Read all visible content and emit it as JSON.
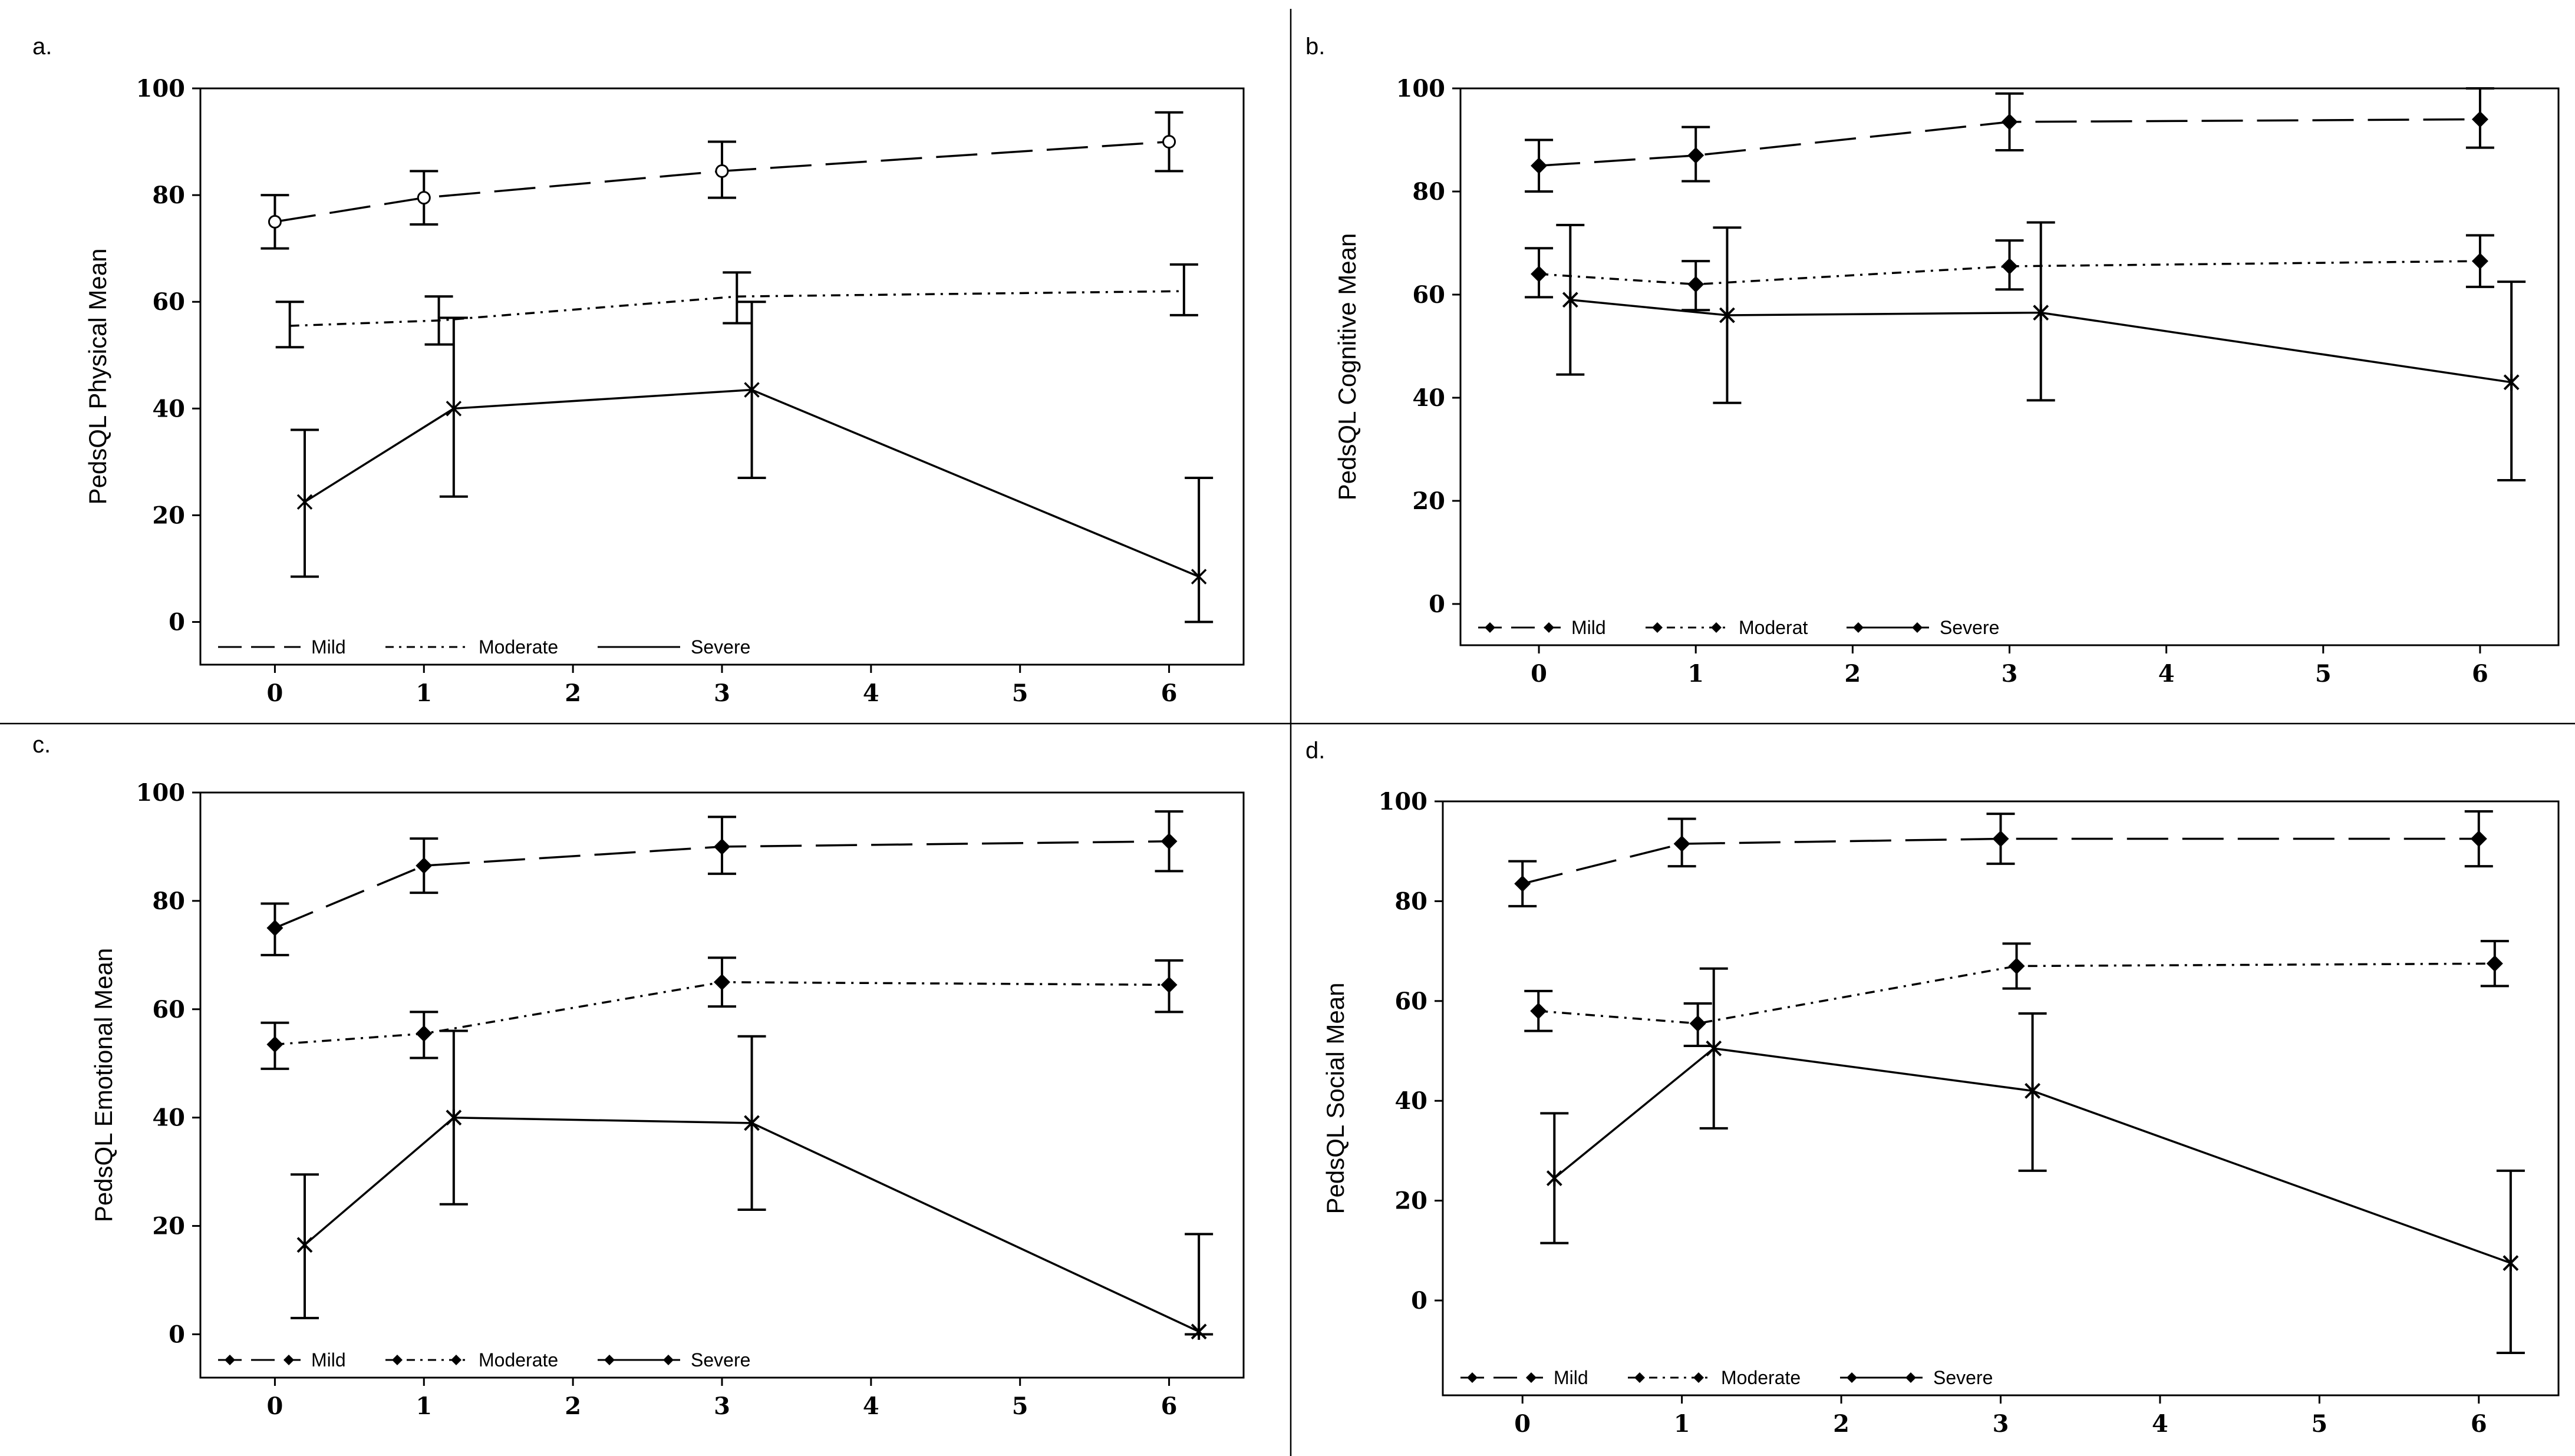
{
  "chart_data": [
    {
      "panel": "a.",
      "type": "line",
      "ylabel": "PedsQL Physical Mean",
      "xlabel": "",
      "xlim": [
        -0.5,
        6.5
      ],
      "ylim": [
        -8,
        100
      ],
      "x_ticks": [
        0,
        1,
        2,
        3,
        4,
        5,
        6
      ],
      "y_ticks": [
        0,
        20,
        40,
        60,
        80,
        100
      ],
      "legend": {
        "position": "bottom-left",
        "entries": [
          "Mild",
          "Moderate",
          "Severe"
        ]
      },
      "series": [
        {
          "name": "Mild",
          "style": "long-dash",
          "marker": "circle",
          "points": [
            {
              "x": 0.0,
              "y": 75,
              "lo": 70,
              "hi": 80
            },
            {
              "x": 1.0,
              "y": 79.5,
              "lo": 74.5,
              "hi": 84.5
            },
            {
              "x": 3.0,
              "y": 84.5,
              "lo": 79.5,
              "hi": 90
            },
            {
              "x": 6.0,
              "y": 90,
              "lo": 84.5,
              "hi": 95.5
            }
          ]
        },
        {
          "name": "Moderate",
          "style": "dash-dot",
          "marker": "none",
          "points": [
            {
              "x": 0.1,
              "y": 55.5,
              "lo": 51.5,
              "hi": 60
            },
            {
              "x": 1.1,
              "y": 56.5,
              "lo": 52,
              "hi": 61
            },
            {
              "x": 3.1,
              "y": 61,
              "lo": 56,
              "hi": 65.5
            },
            {
              "x": 6.1,
              "y": 62,
              "lo": 57.5,
              "hi": 67
            }
          ]
        },
        {
          "name": "Severe",
          "style": "solid",
          "marker": "x",
          "points": [
            {
              "x": 0.2,
              "y": 22.5,
              "lo": 8.5,
              "hi": 36
            },
            {
              "x": 1.2,
              "y": 40,
              "lo": 23.5,
              "hi": 57
            },
            {
              "x": 3.2,
              "y": 43.5,
              "lo": 27,
              "hi": 60
            },
            {
              "x": 6.2,
              "y": 8.5,
              "lo": 0,
              "hi": 27
            }
          ]
        }
      ]
    },
    {
      "panel": "b.",
      "type": "line",
      "ylabel": "PedsQL Cognitive Mean",
      "xlabel": "",
      "xlim": [
        -0.5,
        6.5
      ],
      "ylim": [
        -8,
        100
      ],
      "x_ticks": [
        0,
        1,
        2,
        3,
        4,
        5,
        6
      ],
      "y_ticks": [
        0,
        20,
        40,
        60,
        80,
        100
      ],
      "legend": {
        "position": "bottom-left",
        "entries": [
          "Mild",
          "Moderat",
          "Severe"
        ]
      },
      "series": [
        {
          "name": "Mild",
          "style": "long-dash",
          "marker": "diamond",
          "points": [
            {
              "x": 0.0,
              "y": 85,
              "lo": 80,
              "hi": 90
            },
            {
              "x": 1.0,
              "y": 87,
              "lo": 82,
              "hi": 92.5
            },
            {
              "x": 3.0,
              "y": 93.5,
              "lo": 88,
              "hi": 99
            },
            {
              "x": 6.0,
              "y": 94,
              "lo": 88.5,
              "hi": 100
            }
          ]
        },
        {
          "name": "Moderat",
          "style": "dash-dot",
          "marker": "diamond",
          "points": [
            {
              "x": 0.0,
              "y": 64,
              "lo": 59.5,
              "hi": 69
            },
            {
              "x": 1.0,
              "y": 62,
              "lo": 57,
              "hi": 66.5
            },
            {
              "x": 3.0,
              "y": 65.5,
              "lo": 61,
              "hi": 70.5
            },
            {
              "x": 6.0,
              "y": 66.5,
              "lo": 61.5,
              "hi": 71.5
            }
          ]
        },
        {
          "name": "Severe",
          "style": "solid",
          "marker": "star",
          "points": [
            {
              "x": 0.2,
              "y": 59,
              "lo": 44.5,
              "hi": 73.5
            },
            {
              "x": 1.2,
              "y": 56,
              "lo": 39,
              "hi": 73
            },
            {
              "x": 3.2,
              "y": 56.5,
              "lo": 39.5,
              "hi": 74
            },
            {
              "x": 6.2,
              "y": 43,
              "lo": 24,
              "hi": 62.5
            }
          ]
        }
      ]
    },
    {
      "panel": "c.",
      "type": "line",
      "ylabel": "PedsQL Emotional Mean",
      "xlabel": "",
      "xlim": [
        -0.5,
        6.5
      ],
      "ylim": [
        -8,
        100
      ],
      "x_ticks": [
        0,
        1,
        2,
        3,
        4,
        5,
        6
      ],
      "y_ticks": [
        0,
        20,
        40,
        60,
        80,
        100
      ],
      "legend": {
        "position": "bottom-left",
        "entries": [
          "Mild",
          "Moderate",
          "Severe"
        ]
      },
      "series": [
        {
          "name": "Mild",
          "style": "long-dash",
          "marker": "diamond",
          "points": [
            {
              "x": 0.0,
              "y": 75,
              "lo": 70,
              "hi": 79.5
            },
            {
              "x": 1.0,
              "y": 86.5,
              "lo": 81.5,
              "hi": 91.5
            },
            {
              "x": 3.0,
              "y": 90,
              "lo": 85,
              "hi": 95.5
            },
            {
              "x": 6.0,
              "y": 91,
              "lo": 85.5,
              "hi": 96.5
            }
          ]
        },
        {
          "name": "Moderate",
          "style": "dash-dot",
          "marker": "diamond",
          "points": [
            {
              "x": 0.0,
              "y": 53.5,
              "lo": 49,
              "hi": 57.5
            },
            {
              "x": 1.0,
              "y": 55.5,
              "lo": 51,
              "hi": 59.5
            },
            {
              "x": 3.0,
              "y": 65,
              "lo": 60.5,
              "hi": 69.5
            },
            {
              "x": 6.0,
              "y": 64.5,
              "lo": 59.5,
              "hi": 69
            }
          ]
        },
        {
          "name": "Severe",
          "style": "solid",
          "marker": "star",
          "points": [
            {
              "x": 0.2,
              "y": 16.5,
              "lo": 3,
              "hi": 29.5
            },
            {
              "x": 1.2,
              "y": 40,
              "lo": 24,
              "hi": 56
            },
            {
              "x": 3.2,
              "y": 39,
              "lo": 23,
              "hi": 55
            },
            {
              "x": 6.2,
              "y": 0.5,
              "lo": 0,
              "hi": 18.5
            }
          ]
        }
      ]
    },
    {
      "panel": "d.",
      "type": "line",
      "ylabel": "PedsQL Social Mean",
      "xlabel": "",
      "xlim": [
        -0.5,
        6.5
      ],
      "ylim": [
        -19,
        100
      ],
      "x_ticks": [
        0,
        1,
        2,
        3,
        4,
        5,
        6
      ],
      "y_ticks": [
        0,
        20,
        40,
        60,
        80,
        100
      ],
      "legend": {
        "position": "bottom-left",
        "entries": [
          "Mild",
          "Moderate",
          "Severe"
        ]
      },
      "series": [
        {
          "name": "Mild",
          "style": "long-dash",
          "marker": "diamond",
          "points": [
            {
              "x": 0.0,
              "y": 83.5,
              "lo": 79,
              "hi": 88
            },
            {
              "x": 1.0,
              "y": 91.5,
              "lo": 87,
              "hi": 96.5
            },
            {
              "x": 3.0,
              "y": 92.5,
              "lo": 87.5,
              "hi": 97.5
            },
            {
              "x": 6.0,
              "y": 92.5,
              "lo": 87,
              "hi": 98
            }
          ]
        },
        {
          "name": "Moderate",
          "style": "dash-dot",
          "marker": "diamond",
          "points": [
            {
              "x": 0.1,
              "y": 58,
              "lo": 54,
              "hi": 62
            },
            {
              "x": 1.1,
              "y": 55.5,
              "lo": 51,
              "hi": 59.5
            },
            {
              "x": 3.1,
              "y": 67,
              "lo": 62.5,
              "hi": 71.5
            },
            {
              "x": 6.1,
              "y": 67.5,
              "lo": 63,
              "hi": 72
            }
          ]
        },
        {
          "name": "Severe",
          "style": "solid",
          "marker": "star",
          "points": [
            {
              "x": 0.2,
              "y": 24.5,
              "lo": 11.5,
              "hi": 37.5
            },
            {
              "x": 1.2,
              "y": 50.5,
              "lo": 34.5,
              "hi": 66.5
            },
            {
              "x": 3.2,
              "y": 42,
              "lo": 26,
              "hi": 57.5
            },
            {
              "x": 6.2,
              "y": 7.5,
              "lo": -10.5,
              "hi": 26
            }
          ]
        }
      ]
    }
  ]
}
